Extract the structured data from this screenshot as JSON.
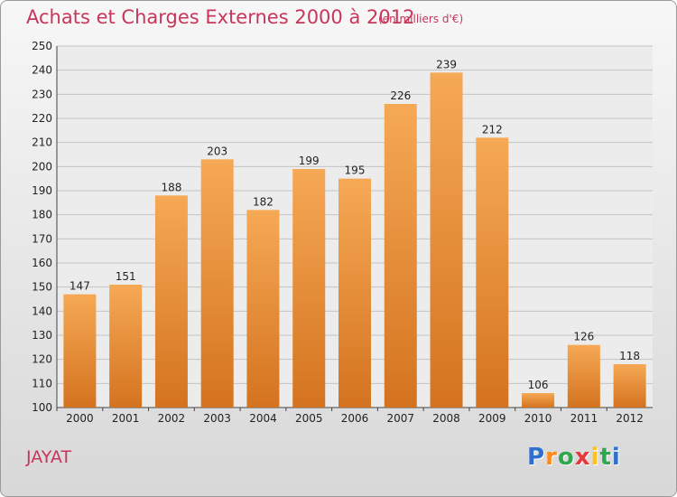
{
  "title": "Achats et Charges Externes 2000 à 2012",
  "unit": "(en milliers d'€)",
  "place": "JAYAT",
  "logo": {
    "letters": [
      "P",
      "r",
      "o",
      "x",
      "i",
      "t",
      "i"
    ],
    "colors": [
      "#2f6fcf",
      "#ff8a1a",
      "#2fa84f",
      "#e8373f",
      "#ffc21a",
      "#2fa84f",
      "#2f6fcf"
    ]
  },
  "colors": {
    "bar_top": "#f6a955",
    "bar_bottom": "#d4731f",
    "title": "#c8365a"
  },
  "chart_data": {
    "type": "bar",
    "categories": [
      "2000",
      "2001",
      "2002",
      "2003",
      "2004",
      "2005",
      "2006",
      "2007",
      "2008",
      "2009",
      "2010",
      "2011",
      "2012"
    ],
    "values": [
      147,
      151,
      188,
      203,
      182,
      199,
      195,
      226,
      239,
      212,
      106,
      126,
      118
    ],
    "title": "Achats et Charges Externes 2000 à 2012",
    "xlabel": "",
    "ylabel": "",
    "ylim": [
      100,
      250
    ],
    "yticks": [
      100,
      110,
      120,
      130,
      140,
      150,
      160,
      170,
      180,
      190,
      200,
      210,
      220,
      230,
      240,
      250
    ],
    "grid": true,
    "legend": "none"
  }
}
